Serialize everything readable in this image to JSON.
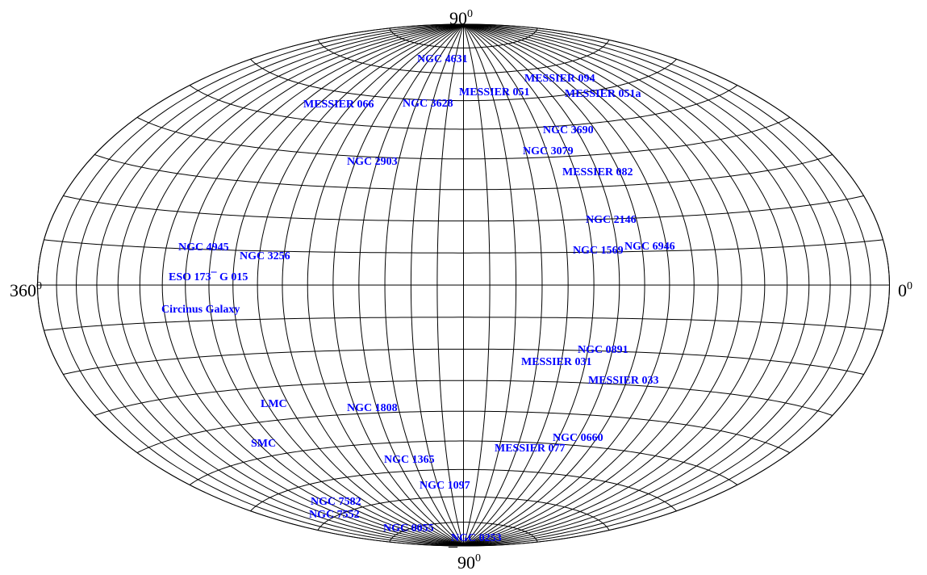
{
  "axis_labels": {
    "top": "90",
    "bottom": "90",
    "bottom_prefix": "¯",
    "left": "360",
    "right": "0",
    "degree_mark": "0"
  },
  "grid": {
    "projection": "aitoff-hammer-like",
    "longitude_step_deg": 10,
    "latitude_step_deg": 10
  },
  "colors": {
    "grid": "#000000",
    "galaxy_labels": "#0000ff",
    "background": "#ffffff"
  },
  "galaxies": [
    {
      "name": "NGC 4631"
    },
    {
      "name": "MESSIER 094"
    },
    {
      "name": "MESSIER 051"
    },
    {
      "name": "MESSIER 051a"
    },
    {
      "name": "MESSIER 066"
    },
    {
      "name": "NGC 3628"
    },
    {
      "name": "NGC 3690"
    },
    {
      "name": "NGC 3079"
    },
    {
      "name": "NGC 2903"
    },
    {
      "name": "MESSIER 082"
    },
    {
      "name": "NGC 2146"
    },
    {
      "name": "NGC 4945"
    },
    {
      "name": "NGC 3256"
    },
    {
      "name": "NGC 1569"
    },
    {
      "name": "NGC 6946"
    },
    {
      "name": "ESO 173¯ G 015"
    },
    {
      "name": "Circinus Galaxy"
    },
    {
      "name": "NGC 0891"
    },
    {
      "name": "MESSIER 031"
    },
    {
      "name": "MESSIER 033"
    },
    {
      "name": "LMC"
    },
    {
      "name": "NGC 1808"
    },
    {
      "name": "NGC 0660"
    },
    {
      "name": "SMC"
    },
    {
      "name": "MESSIER 077"
    },
    {
      "name": "NGC 1365"
    },
    {
      "name": "NGC 1097"
    },
    {
      "name": "NGC 7582"
    },
    {
      "name": "NGC 7552"
    },
    {
      "name": "NGC 0055"
    },
    {
      "name": "NGC 0253"
    }
  ]
}
